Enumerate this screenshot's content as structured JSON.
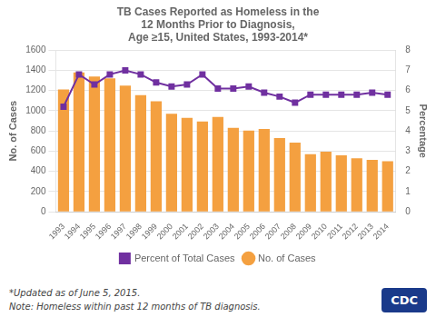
{
  "chart_data": {
    "type": "bar",
    "title": [
      "TB Cases Reported as Homeless in the",
      "12 Months Prior to Diagnosis,",
      "Age ≥15, United States, 1993-2014*"
    ],
    "ylabel": "No. of Cases",
    "y2label": "Percentage",
    "annotations": [
      "*Updated as of June 5, 2015.",
      "Note: Homeless within past 12 months of TB diagnosis.",
      "CDC"
    ],
    "categories": [
      "1993",
      "1994",
      "1995",
      "1996",
      "1997",
      "1998",
      "1999",
      "2000",
      "2001",
      "2002",
      "2003",
      "2004",
      "2005",
      "2006",
      "2007",
      "2008",
      "2009",
      "2010",
      "2011",
      "2012",
      "2013",
      "2014"
    ],
    "series": [
      {
        "name": "No. of Cases",
        "type": "bar",
        "color": "#F4A040",
        "values": [
          1210,
          1379,
          1340,
          1320,
          1250,
          1155,
          1095,
          970,
          930,
          895,
          940,
          830,
          805,
          820,
          730,
          685,
          570,
          595,
          560,
          530,
          515,
          500
        ]
      },
      {
        "name": "Percent of Total Cases",
        "type": "line",
        "color": "#7030A0",
        "marker": "square",
        "axis": "y2",
        "values": [
          5.2,
          6.8,
          6.3,
          6.8,
          7.0,
          6.8,
          6.4,
          6.2,
          6.3,
          6.8,
          6.1,
          6.1,
          6.2,
          5.9,
          5.7,
          5.4,
          5.8,
          5.8,
          5.8,
          5.8,
          5.9,
          5.8
        ]
      }
    ],
    "ylim": [
      0,
      1600
    ],
    "yticks": [
      0,
      200,
      400,
      600,
      800,
      1000,
      1200,
      1400,
      1600
    ],
    "y2lim": [
      0,
      8
    ],
    "y2ticks": [
      0,
      1,
      2,
      3,
      4,
      5,
      6,
      7,
      8
    ],
    "grid": true,
    "legend": "bottom"
  }
}
